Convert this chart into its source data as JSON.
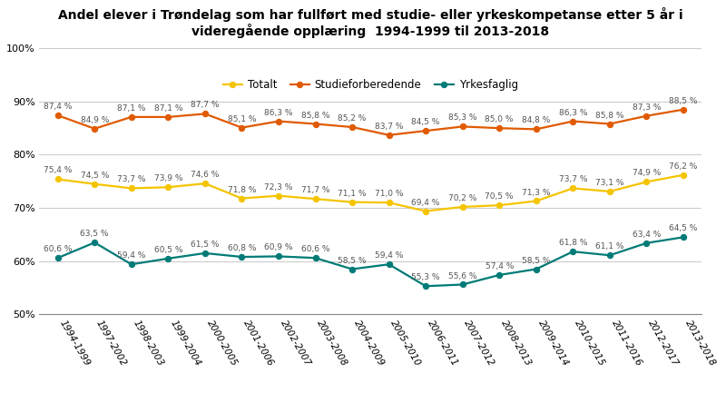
{
  "title": "Andel elever i Trøndelag som har fullført med studie- eller yrkeskompetanse etter 5 år i\nvideregående opplæring  1994-1999 til 2013-2018",
  "categories": [
    "1994-1999",
    "1997-2002",
    "1998-2003",
    "1999-2004",
    "2000-2005",
    "2001-2006",
    "2002-2007",
    "2003-2008",
    "2004-2009",
    "2005-2010",
    "2006-2011",
    "2007-2012",
    "2008-2013",
    "2009-2014",
    "2010-2015",
    "2011-2016",
    "2012-2017",
    "2013-2018"
  ],
  "totalt": [
    75.4,
    74.5,
    73.7,
    73.9,
    74.6,
    71.8,
    72.3,
    71.7,
    71.1,
    71.0,
    69.4,
    70.2,
    70.5,
    71.3,
    73.7,
    73.1,
    74.9,
    76.2
  ],
  "studieforberedende": [
    87.4,
    84.9,
    87.1,
    87.1,
    87.7,
    85.1,
    86.3,
    85.8,
    85.2,
    83.7,
    84.5,
    85.3,
    85.0,
    84.8,
    86.3,
    85.8,
    87.3,
    88.5
  ],
  "yrkesfaglig": [
    60.6,
    63.5,
    59.4,
    60.5,
    61.5,
    60.8,
    60.9,
    60.6,
    58.5,
    59.4,
    55.3,
    55.6,
    57.4,
    58.5,
    61.8,
    61.1,
    63.4,
    64.5
  ],
  "color_totalt": "#f5c400",
  "color_studieforberedende": "#e05a00",
  "color_yrkesfaglig": "#007b77",
  "ylim": [
    50,
    100
  ],
  "yticks": [
    50,
    60,
    70,
    80,
    90,
    100
  ],
  "ytick_labels": [
    "50%",
    "60%",
    "70%",
    "80%",
    "90%",
    "100%"
  ],
  "background_color": "#ffffff",
  "grid_color": "#cccccc",
  "label_totalt": "Totalt",
  "label_studieforberedende": "Studieforberedende",
  "label_yrkesfaglig": "Yrkesfaglig",
  "label_fontsize": 6.5,
  "tick_fontsize": 8.0,
  "title_fontsize": 10,
  "legend_fontsize": 8.5
}
